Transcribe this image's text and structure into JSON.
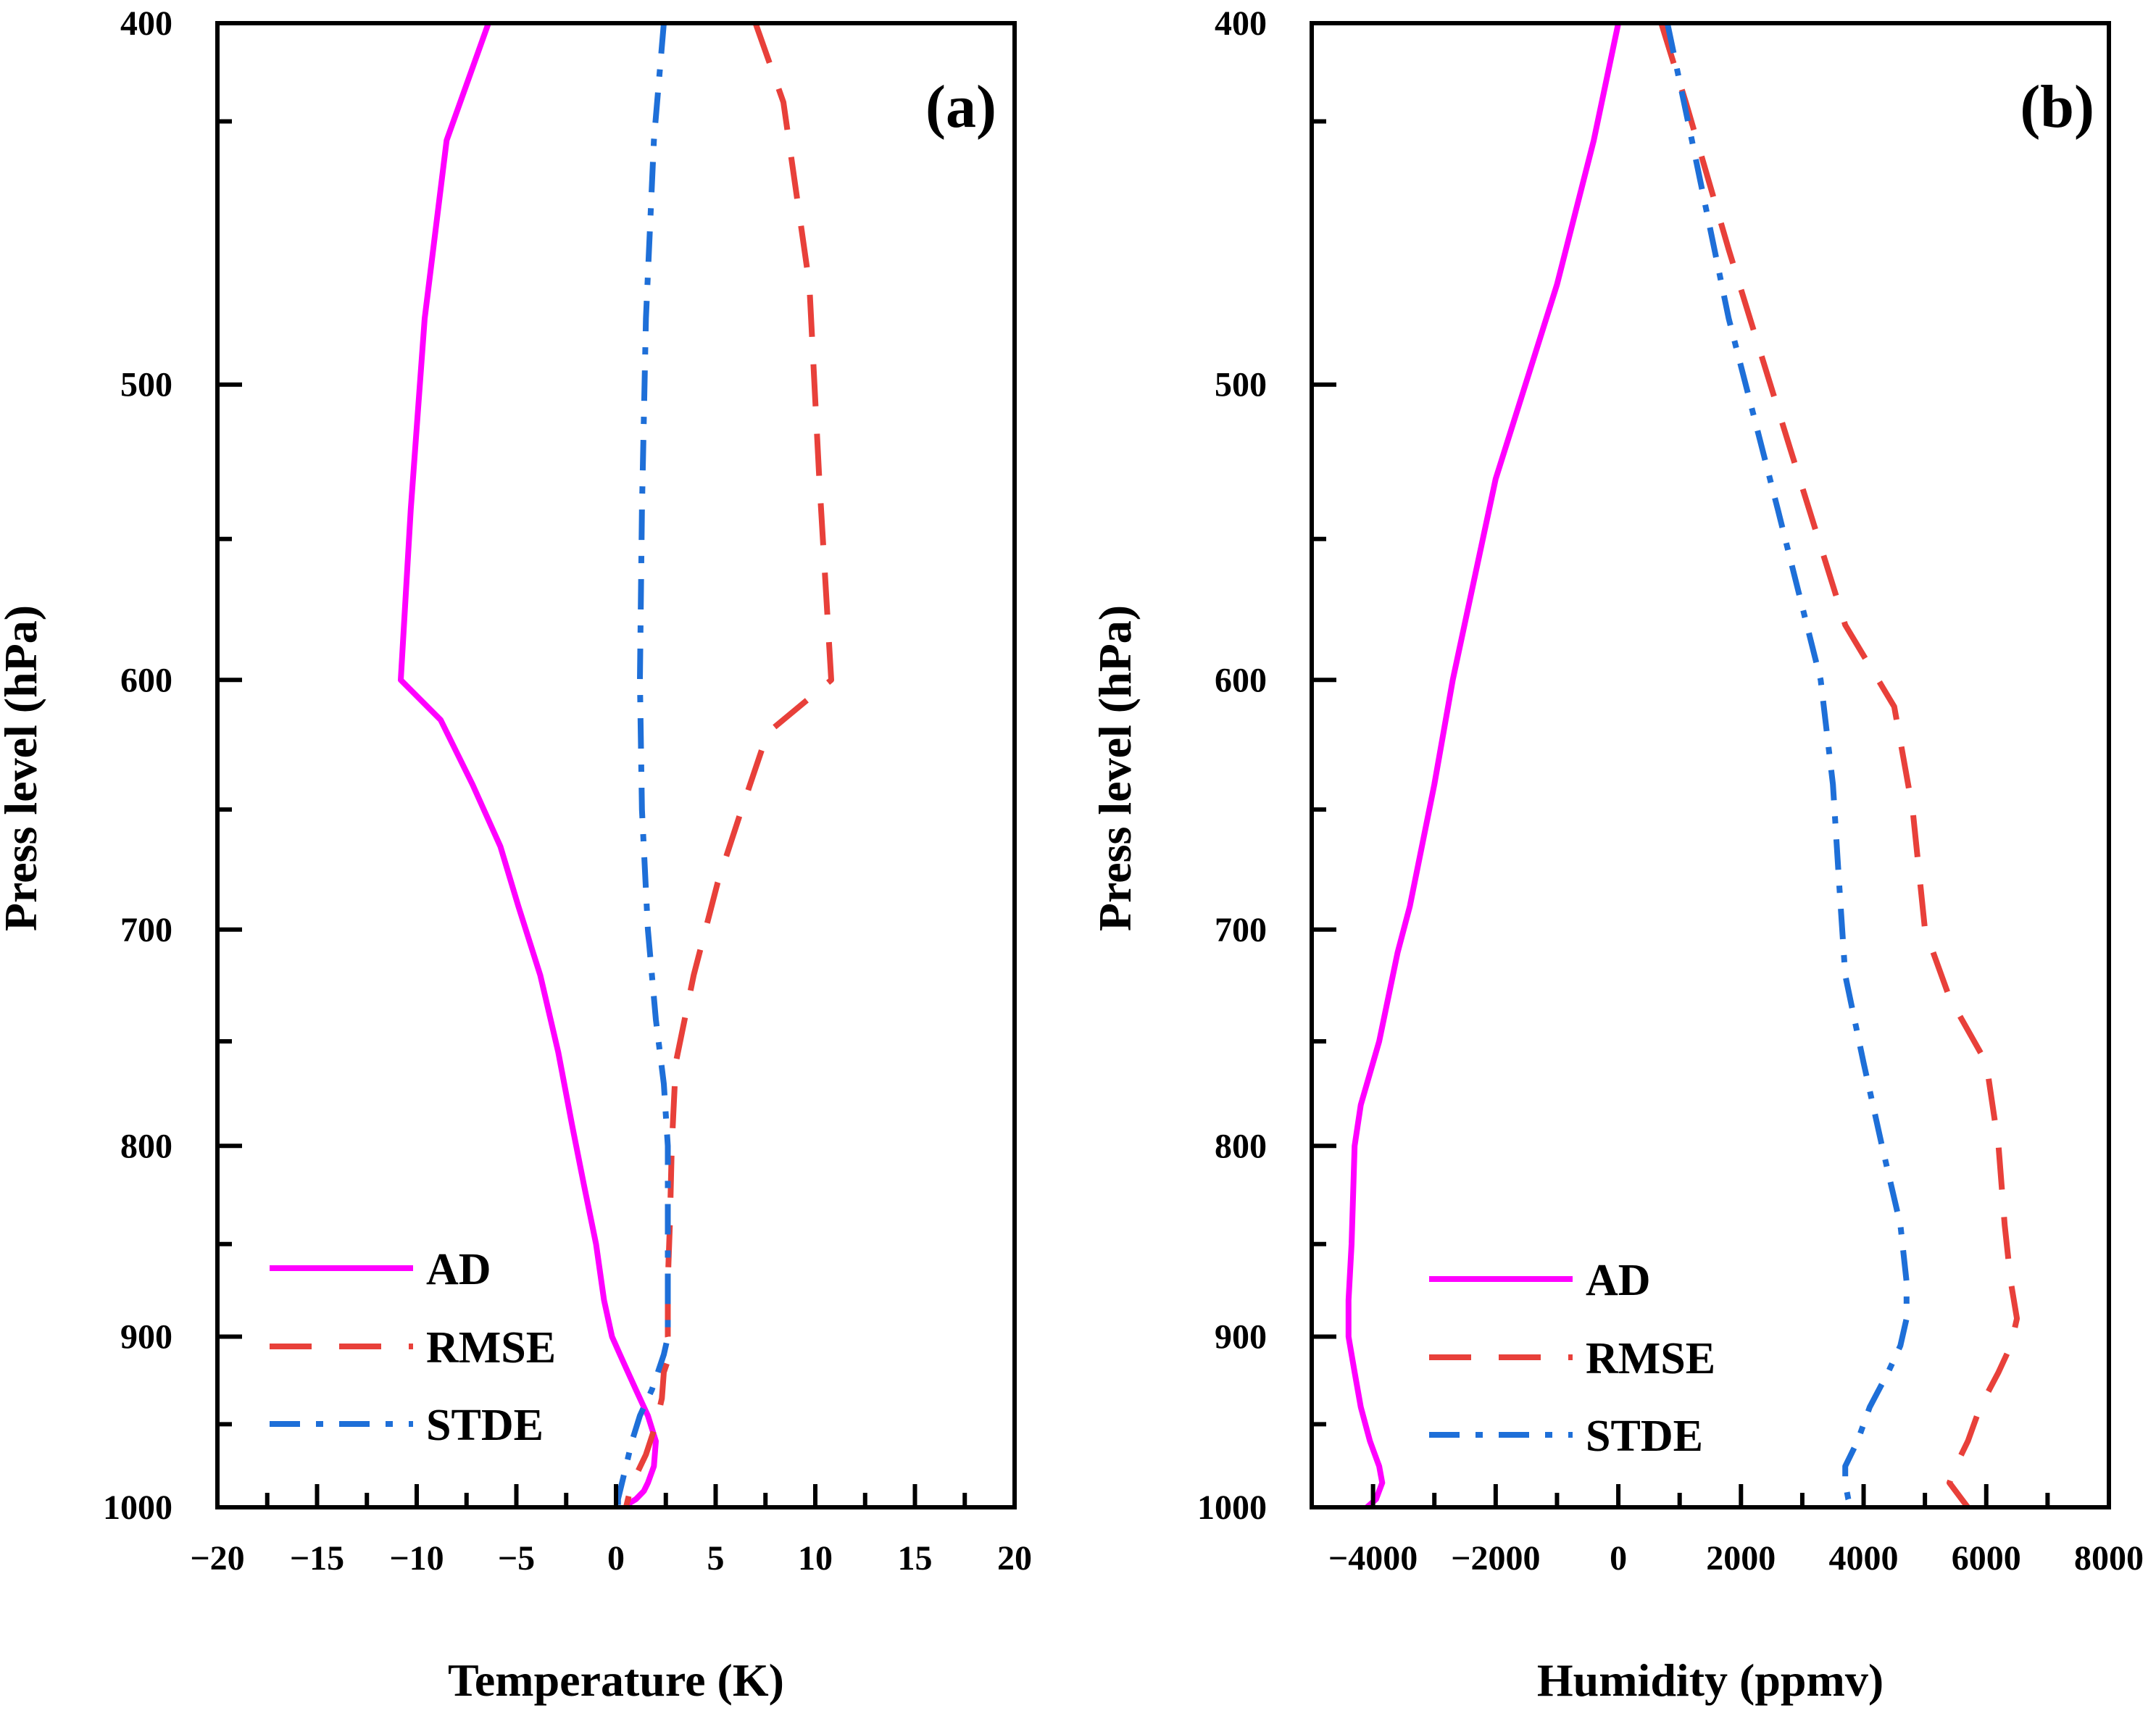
{
  "chart_data": [
    {
      "type": "line",
      "panel_label": "(a)",
      "xlabel": "Temperature (K)",
      "ylabel": "Press level (hPa)",
      "xlim": [
        -20,
        20
      ],
      "ylim": [
        400,
        1000
      ],
      "y_scale": "log",
      "x_ticks": [
        -20,
        -15,
        -10,
        -5,
        0,
        5,
        10,
        15,
        20
      ],
      "x_tick_labels": [
        "−20",
        "−15",
        "−10",
        "−5",
        "0",
        "5",
        "10",
        "15",
        "20"
      ],
      "x_minor_step": 2.5,
      "y_ticks": [
        400,
        500,
        600,
        700,
        800,
        900,
        1000
      ],
      "y_tick_labels": [
        "400",
        "500",
        "600",
        "700",
        "800",
        "900",
        "1000"
      ],
      "y_minor_ticks": [
        425,
        550,
        650,
        750,
        850,
        950
      ],
      "legend_position": "bottom-left",
      "series": [
        {
          "name": "AD",
          "color": "#ff00ff",
          "dash": "solid",
          "x": [
            -6.4,
            -8.5,
            -9.6,
            -10.3,
            -10.8,
            -8.8,
            -7.2,
            -5.8,
            -4.9,
            -3.8,
            -2.9,
            -2.2,
            -1.6,
            -1.0,
            -0.6,
            -0.2,
            0.2,
            0.6,
            1.0,
            1.6,
            2.0,
            1.9,
            1.6,
            1.4,
            1.0,
            0.6,
            0.5
          ],
          "y": [
            400,
            430,
            480,
            540,
            600,
            615,
            640,
            665,
            690,
            720,
            755,
            790,
            820,
            850,
            880,
            900,
            910,
            920,
            930,
            945,
            960,
            975,
            985,
            990,
            995,
            998,
            1000
          ]
        },
        {
          "name": "RMSE",
          "color": "#e8403a",
          "dash": "dashed",
          "x": [
            7.0,
            8.4,
            9.7,
            10.2,
            10.8,
            7.6,
            6.3,
            5.1,
            3.9,
            3.0,
            2.8,
            2.7,
            2.6,
            2.6,
            2.6,
            2.7,
            2.7,
            2.4,
            2.3,
            2.0,
            1.5,
            1.1,
            0.8,
            0.7,
            0.6,
            0.5
          ],
          "y": [
            400,
            420,
            470,
            530,
            600,
            620,
            650,
            680,
            720,
            760,
            800,
            840,
            870,
            890,
            900,
            905,
            910,
            920,
            935,
            950,
            968,
            978,
            985,
            990,
            995,
            1000
          ]
        },
        {
          "name": "STDE",
          "color": "#1e6fd8",
          "dash": "dashdot",
          "x": [
            2.4,
            1.9,
            1.5,
            1.3,
            1.2,
            1.3,
            1.6,
            2.0,
            2.4,
            2.6,
            2.6,
            2.6,
            2.6,
            2.6,
            2.5,
            2.4,
            2.1,
            1.8,
            1.2,
            0.8,
            0.5,
            0.3,
            0.1,
            0.1
          ],
          "y": [
            400,
            430,
            480,
            540,
            600,
            650,
            700,
            740,
            770,
            800,
            840,
            870,
            890,
            900,
            905,
            910,
            920,
            930,
            945,
            960,
            975,
            985,
            995,
            1000
          ]
        }
      ]
    },
    {
      "type": "line",
      "panel_label": "(b)",
      "xlabel": "Humidity (ppmv)",
      "ylabel": "Press level (hPa)",
      "xlim": [
        -5000,
        8000
      ],
      "ylim": [
        400,
        1000
      ],
      "y_scale": "log",
      "x_ticks": [
        -4000,
        -2000,
        0,
        2000,
        4000,
        6000,
        8000
      ],
      "x_tick_labels": [
        "−4000",
        "−2000",
        "0",
        "2000",
        "4000",
        "6000",
        "8000"
      ],
      "x_minor_step": 1000,
      "y_ticks": [
        400,
        500,
        600,
        700,
        800,
        900,
        1000
      ],
      "y_tick_labels": [
        "400",
        "500",
        "600",
        "700",
        "800",
        "900",
        "1000"
      ],
      "y_minor_ticks": [
        425,
        550,
        650,
        750,
        850,
        950
      ],
      "legend_position": "bottom-left",
      "series": [
        {
          "name": "AD",
          "color": "#ff00ff",
          "dash": "solid",
          "x": [
            0,
            -400,
            -1000,
            -2000,
            -2700,
            -3000,
            -3400,
            -3600,
            -3900,
            -4200,
            -4300,
            -4350,
            -4400,
            -4400,
            -4350,
            -4300,
            -4200,
            -4050,
            -3900,
            -3850,
            -3950,
            -4100
          ],
          "y": [
            400,
            430,
            470,
            530,
            600,
            640,
            690,
            710,
            750,
            780,
            800,
            850,
            880,
            900,
            910,
            920,
            940,
            960,
            975,
            985,
            995,
            1000
          ]
        },
        {
          "name": "RMSE",
          "color": "#e8403a",
          "dash": "dashed",
          "x": [
            700,
            1100,
            1800,
            2800,
            3700,
            4500,
            4800,
            5000,
            5400,
            6000,
            6200,
            6300,
            6400,
            6500,
            6400,
            6200,
            5900,
            5700,
            5500,
            5400,
            5600,
            5700
          ],
          "y": [
            400,
            420,
            460,
            520,
            580,
            610,
            650,
            700,
            730,
            760,
            800,
            840,
            870,
            890,
            905,
            920,
            940,
            960,
            975,
            985,
            995,
            1000
          ]
        },
        {
          "name": "STDE",
          "color": "#1e6fd8",
          "dash": "dashdot",
          "x": [
            800,
            1200,
            1800,
            2600,
            3300,
            3500,
            3600,
            3700,
            4000,
            4300,
            4600,
            4700,
            4700,
            4600,
            4400,
            4100,
            3900,
            3700,
            3700,
            3750,
            3800
          ],
          "y": [
            400,
            430,
            480,
            540,
            600,
            640,
            680,
            720,
            760,
            800,
            840,
            870,
            890,
            905,
            920,
            940,
            960,
            975,
            985,
            995,
            1000
          ]
        }
      ]
    }
  ]
}
